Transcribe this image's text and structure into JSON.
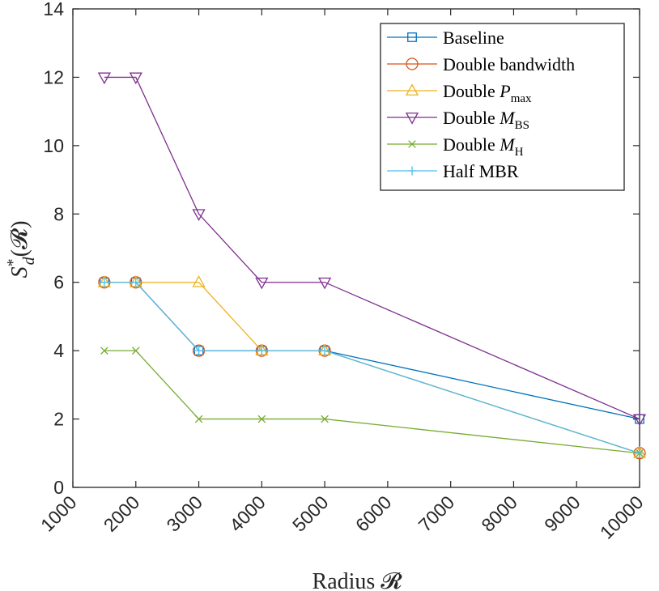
{
  "chart_data": {
    "type": "line",
    "xlabel": "Radius 𝓡",
    "ylabel": "S*d(𝓡)",
    "ylabel_main": "S",
    "ylabel_sup": "*",
    "ylabel_sub": "d",
    "ylabel_arg": "(𝓡)",
    "xlim": [
      1000,
      10000
    ],
    "ylim": [
      0,
      14
    ],
    "xticks": [
      1000,
      2000,
      3000,
      4000,
      5000,
      6000,
      7000,
      8000,
      9000,
      10000
    ],
    "xtick_labels": [
      "1000",
      "2000",
      "3000",
      "4000",
      "5000",
      "6000",
      "7000",
      "8000",
      "9000",
      "10000"
    ],
    "yticks": [
      0,
      2,
      4,
      6,
      8,
      10,
      12,
      14
    ],
    "ytick_labels": [
      "0",
      "2",
      "4",
      "6",
      "8",
      "10",
      "12",
      "14"
    ],
    "grid": false,
    "legend_position": "top-right",
    "x": [
      1500,
      2000,
      3000,
      4000,
      5000,
      10000
    ],
    "series": [
      {
        "name": "Baseline",
        "label_main": "Baseline",
        "label_sub": "",
        "color": "#0072BD",
        "marker": "square",
        "values": [
          6,
          6,
          4,
          4,
          4,
          2
        ]
      },
      {
        "name": "Double bandwidth",
        "label_main": "Double bandwidth",
        "label_sub": "",
        "color": "#D95319",
        "marker": "circle",
        "values": [
          6,
          6,
          4,
          4,
          4,
          1
        ]
      },
      {
        "name": "Double Pmax",
        "label_main": "Double P",
        "label_sub": "max",
        "color": "#EDB120",
        "marker": "triangle-up",
        "values": [
          6,
          6,
          6,
          4,
          4,
          1
        ]
      },
      {
        "name": "Double MBS",
        "label_main": "Double M",
        "label_sub": "BS",
        "color": "#7E2F8E",
        "marker": "triangle-down",
        "values": [
          12,
          12,
          8,
          6,
          6,
          2
        ]
      },
      {
        "name": "Double MH",
        "label_main": "Double M",
        "label_sub": "H",
        "color": "#77AC30",
        "marker": "x",
        "values": [
          4,
          4,
          2,
          2,
          2,
          1
        ]
      },
      {
        "name": "Half MBR",
        "label_main": "Half MBR",
        "label_sub": "",
        "color": "#4DBEEE",
        "marker": "plus",
        "values": [
          6,
          6,
          4,
          4,
          4,
          1
        ]
      }
    ]
  }
}
